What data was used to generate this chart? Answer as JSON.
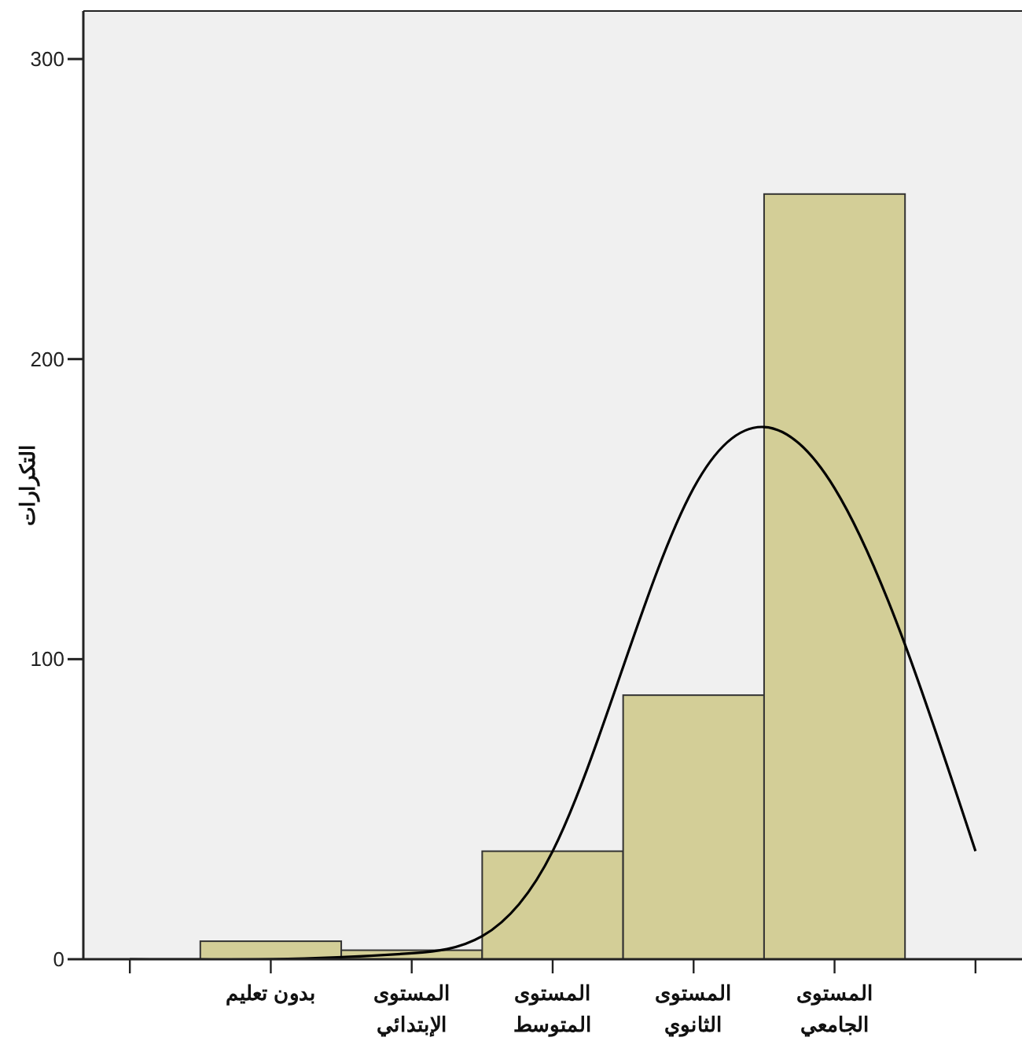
{
  "chart_data": {
    "type": "bar",
    "ylabel": "التكرارات",
    "ylim": [
      0,
      316
    ],
    "yticks": [
      0,
      100,
      200,
      300
    ],
    "categories": [
      null,
      "بدون تعليم",
      "المستوى\nالإبتدائي",
      "المستوى\nالمتوسط",
      "المستوى\nالثانوي",
      "المستوى\nالجامعي",
      null
    ],
    "grid": false,
    "series": [
      {
        "color": "#d3ce97",
        "values": [
          null,
          6,
          3,
          36,
          88,
          255,
          null
        ]
      },
      {
        "type": "line",
        "color": "#000000",
        "values": [
          0,
          0,
          2,
          36,
          157,
          157,
          36
        ]
      }
    ]
  }
}
